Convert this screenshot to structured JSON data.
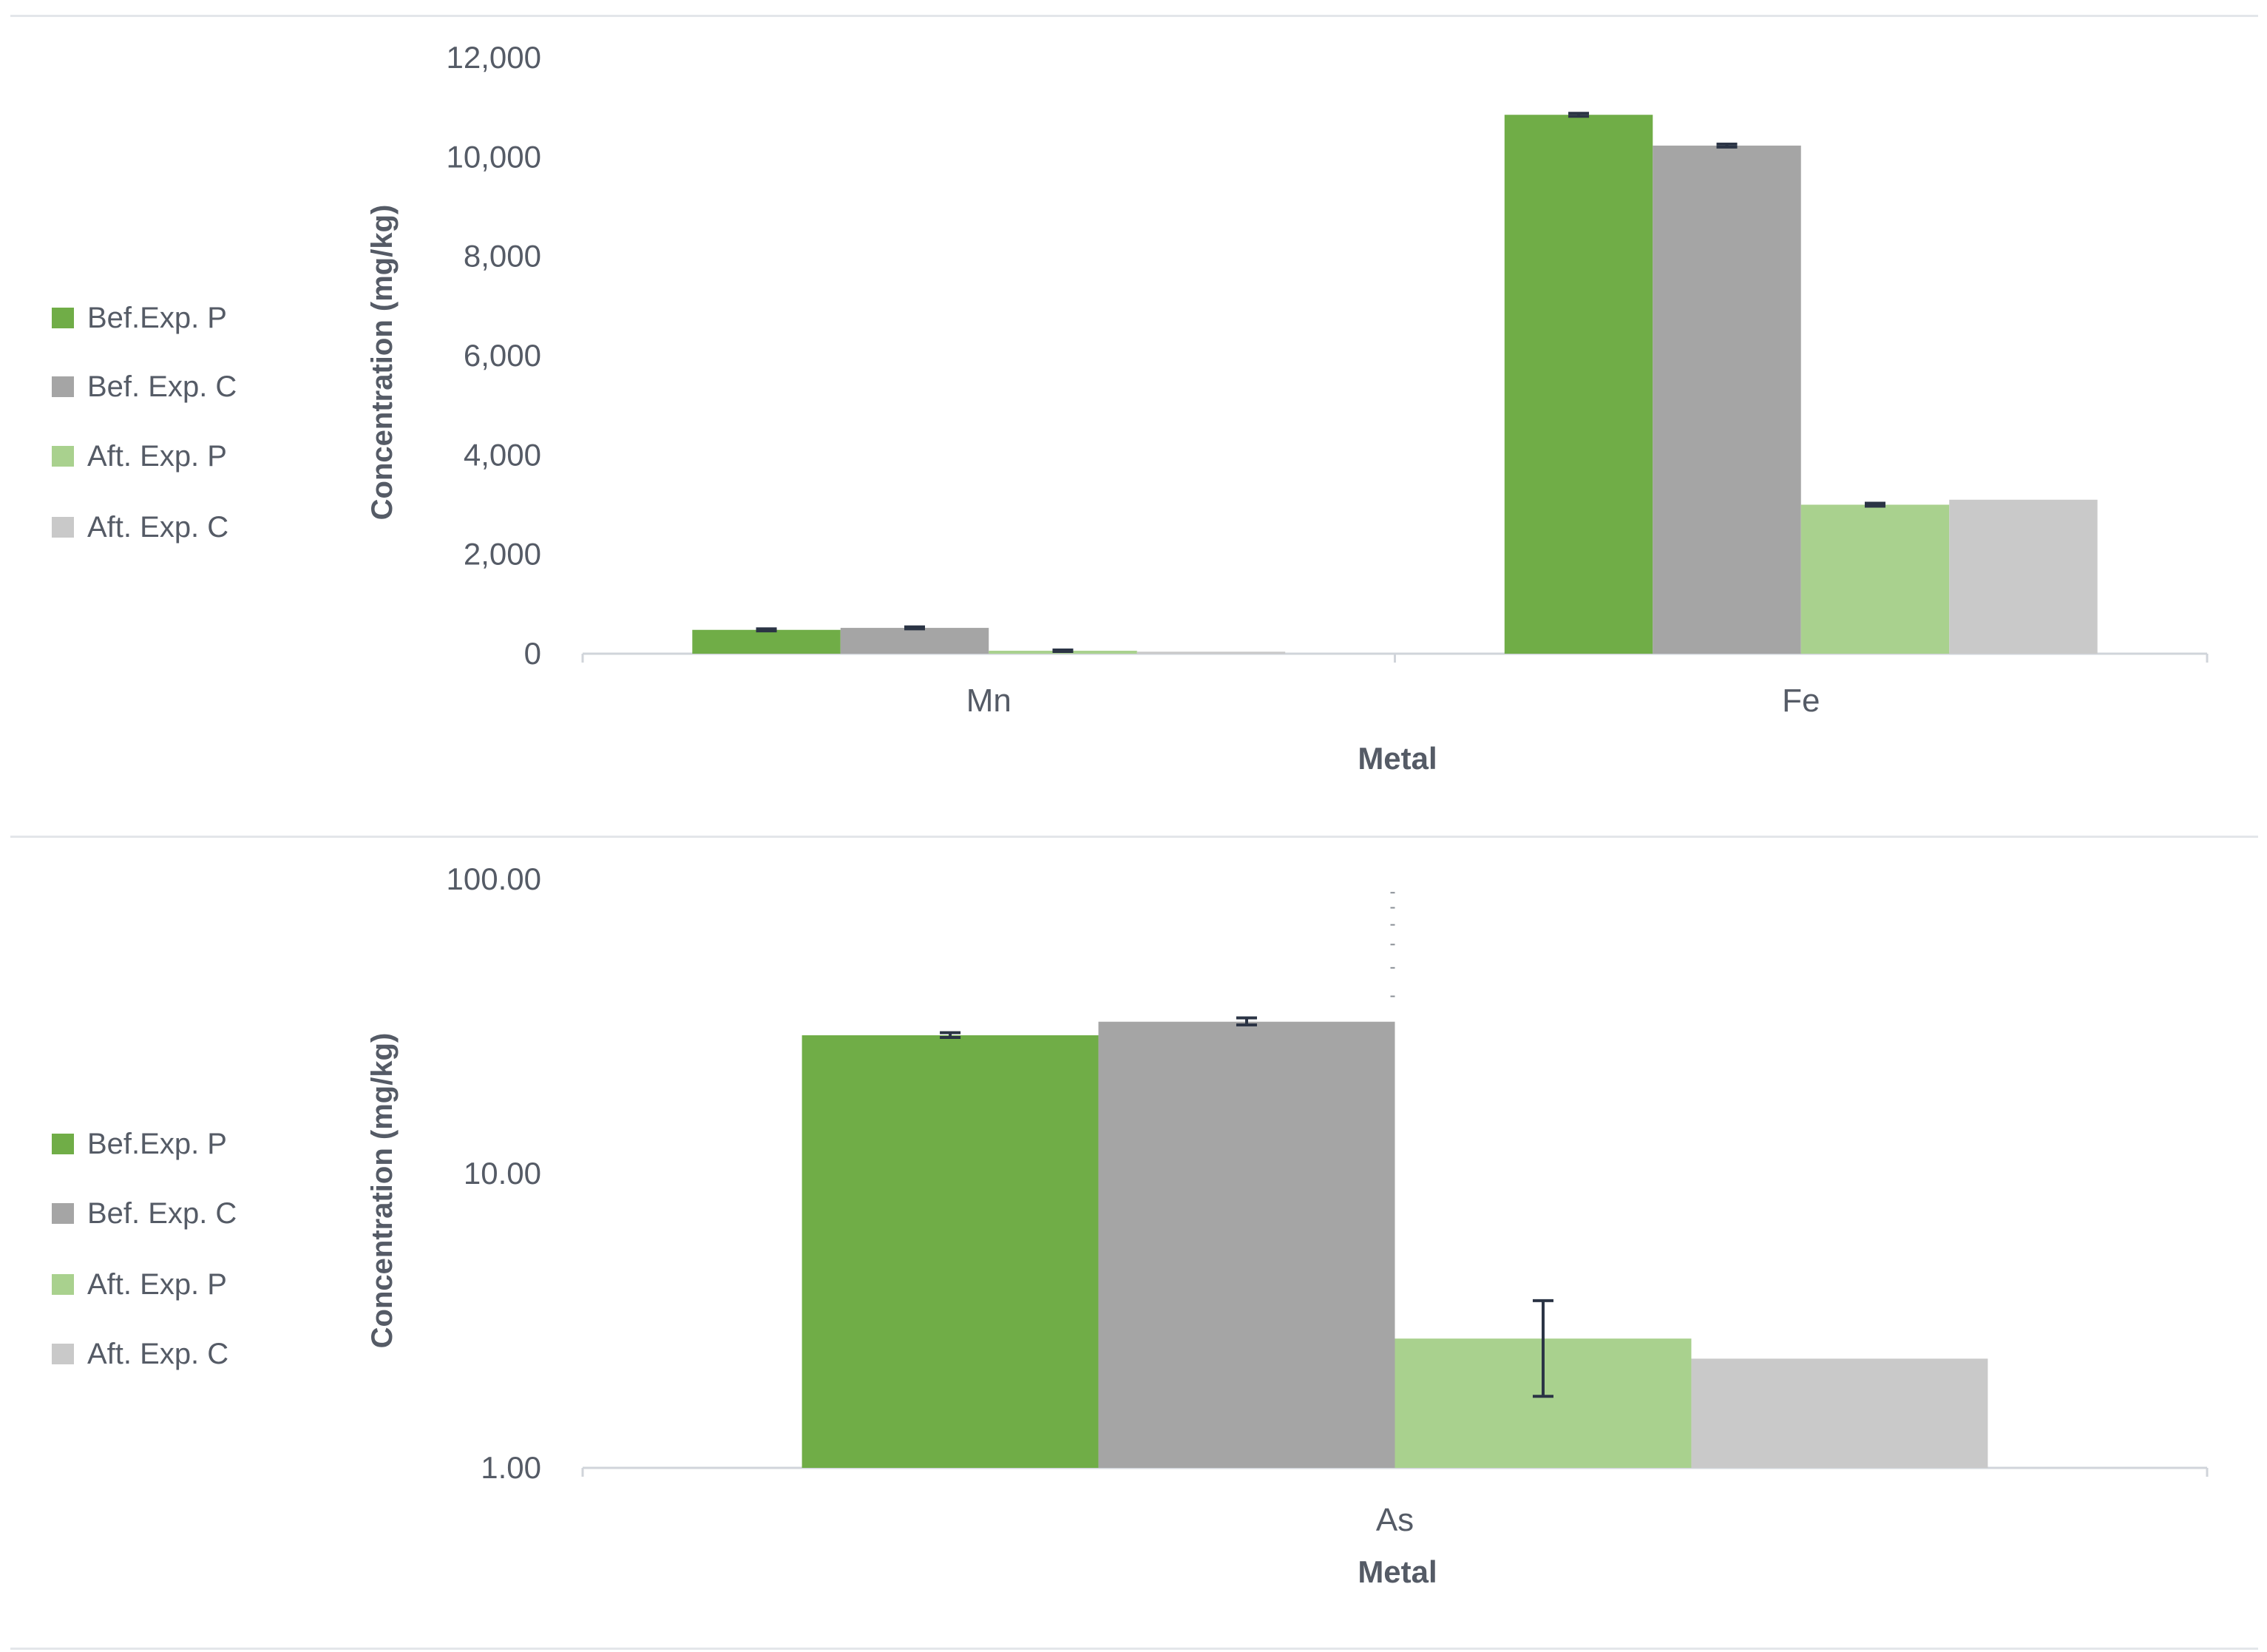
{
  "chart_data": [
    {
      "type": "bar",
      "title": "",
      "xlabel": "Metal",
      "ylabel": "Concentration (mg/kg)",
      "categories": [
        "Mn",
        "Fe"
      ],
      "y_scale": "linear",
      "ylim": [
        0,
        12000
      ],
      "yticks": [
        0,
        2000,
        4000,
        6000,
        8000,
        10000,
        12000
      ],
      "ytick_labels": [
        "0",
        "2,000",
        "4,000",
        "6,000",
        "8,000",
        "10,000",
        "12,000"
      ],
      "legend_position": "left",
      "grid": false,
      "series": [
        {
          "name": "Bef.Exp. P",
          "color": "#70ad47",
          "values": [
            480,
            10850
          ],
          "error": [
            20,
            30
          ]
        },
        {
          "name": "Bef. Exp. C",
          "color": "#a5a5a5",
          "values": [
            520,
            10230
          ],
          "error": [
            20,
            30
          ]
        },
        {
          "name": "Aft. Exp. P",
          "color": "#a9d18e",
          "values": [
            60,
            3000
          ],
          "error": [
            15,
            30
          ]
        },
        {
          "name": "Aft. Exp. C",
          "color": "#c9c9c9",
          "values": [
            40,
            3100
          ],
          "error": [
            null,
            null
          ]
        }
      ]
    },
    {
      "type": "bar",
      "title": "",
      "xlabel": "Metal",
      "ylabel": "Concentration (mg/kg)",
      "categories": [
        "As"
      ],
      "y_scale": "log",
      "ylim": [
        1,
        100
      ],
      "yticks": [
        1,
        10,
        100
      ],
      "ytick_labels": [
        "1.00",
        "10.00",
        "100.00"
      ],
      "legend_position": "left",
      "grid": false,
      "series": [
        {
          "name": "Bef.Exp. P",
          "color": "#70ad47",
          "values": [
            29.5
          ],
          "error_low": [
            29.0
          ],
          "error_high": [
            30.1
          ]
        },
        {
          "name": "Bef. Exp. C",
          "color": "#a5a5a5",
          "values": [
            32.8
          ],
          "error_low": [
            32.0
          ],
          "error_high": [
            33.8
          ]
        },
        {
          "name": "Aft. Exp. P",
          "color": "#a9d18e",
          "values": [
            2.75
          ],
          "error_low": [
            1.75
          ],
          "error_high": [
            3.7
          ]
        },
        {
          "name": "Aft. Exp. C",
          "color": "#c9c9c9",
          "values": [
            2.35
          ],
          "error_low": [
            null
          ],
          "error_high": [
            null
          ]
        }
      ]
    }
  ]
}
